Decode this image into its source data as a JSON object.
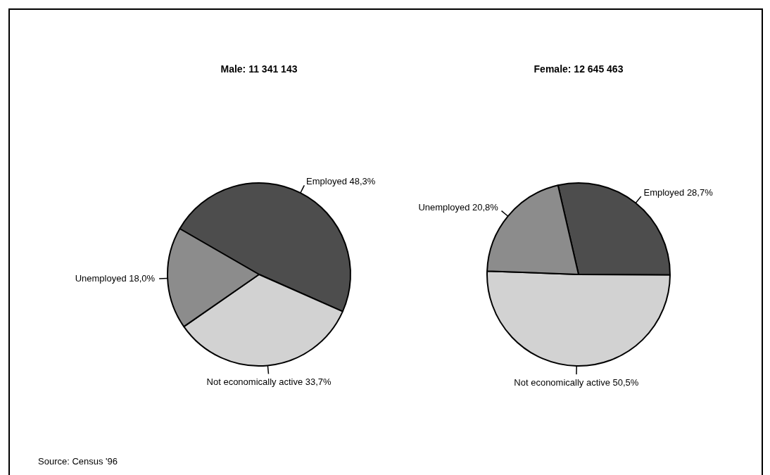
{
  "chart_data": [
    {
      "type": "pie",
      "title": "Male: 11 341 143",
      "categories": [
        "Employed",
        "Not economically active",
        "Unemployed"
      ],
      "values": [
        48.3,
        33.7,
        18.0
      ],
      "value_labels": [
        "48,3%",
        "33,7%",
        "18,0%"
      ],
      "colors": [
        "#4d4d4d",
        "#d2d2d2",
        "#8c8c8c"
      ],
      "legend": false,
      "annotations": [
        "Source:  Census '96"
      ]
    },
    {
      "type": "pie",
      "title": "Female: 12 645 463",
      "categories": [
        "Employed",
        "Not economically active",
        "Unemployed"
      ],
      "values": [
        28.7,
        50.5,
        20.8
      ],
      "value_labels": [
        "28,7%",
        "50,5%",
        "20,8%"
      ],
      "colors": [
        "#4d4d4d",
        "#d2d2d2",
        "#8c8c8c"
      ],
      "legend": false
    }
  ]
}
